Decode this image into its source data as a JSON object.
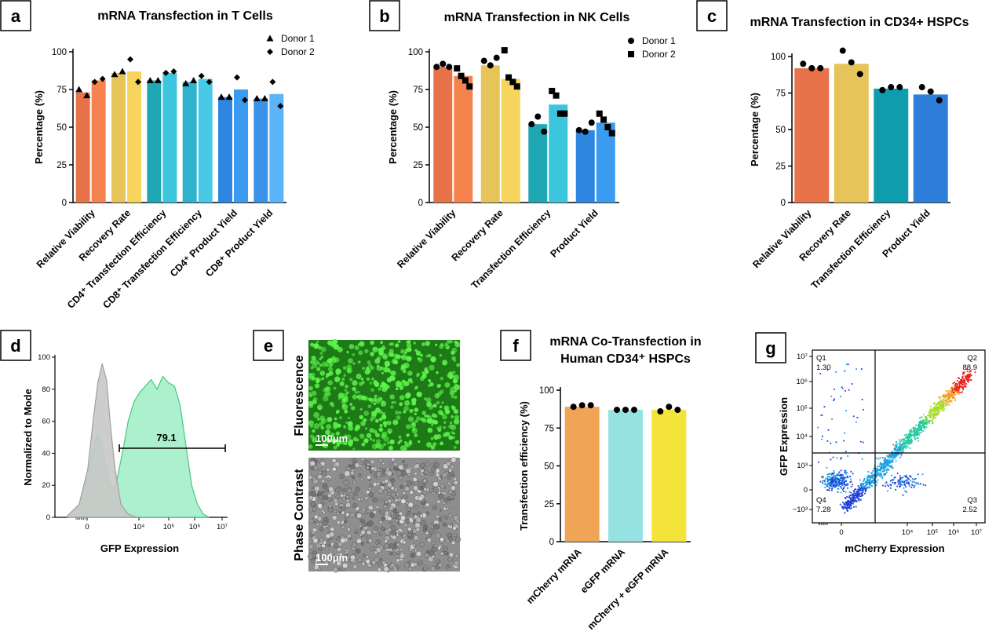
{
  "colors": {
    "orange": "#E8734A",
    "orange_light": "#F5834E",
    "gold": "#E6C45A",
    "gold_light": "#F7D45E",
    "teal": "#1FA8B4",
    "teal_light": "#3CC6DD",
    "teal_b": "#2FB3CC",
    "teal_b_light": "#48C9E6",
    "blue": "#2E86E0",
    "blue_light": "#3A9BF0",
    "blue_b": "#3A93E8",
    "blue_b_light": "#5BB4F8",
    "c_teal": "#0F9DAE",
    "c_blue": "#2D7ED8",
    "f_orange": "#F0A455",
    "f_cyan": "#96E2E2",
    "f_yellow": "#F4E43A",
    "hist_gray": "#C8C8C8",
    "hist_green": "#9EEDC6",
    "hist_green_line": "#49C87E",
    "fluor_bg": "#1E7A16",
    "fluor_cell": "#5DF24C",
    "phase_bg": "#8E8E8E"
  },
  "panels": {
    "a": {
      "letter": "a",
      "chart_data": {
        "type": "bar",
        "title": "mRNA Transfection in T Cells",
        "ylabel": "Percentage (%)",
        "ylim": [
          0,
          100
        ],
        "yticks": [
          "0",
          "25",
          "50",
          "75",
          "100"
        ],
        "categories": [
          "Relative Viability",
          "Recovery Rate",
          "CD4⁺ Transfection Efficiency",
          "CD8⁺ Transfection Efficiency",
          "CD4⁺ Product Yield",
          "CD8⁺ Product Yield"
        ],
        "series": [
          {
            "name": "Donor 1",
            "marker": "triangle",
            "values": [
              73,
              86,
              81,
              80,
              70,
              69
            ],
            "points": [
              [
                75,
                71
              ],
              [
                85,
                87
              ],
              [
                81,
                81
              ],
              [
                79,
                81
              ],
              [
                70,
                70
              ],
              [
                69,
                69
              ]
            ]
          },
          {
            "name": "Donor 2",
            "marker": "diamond",
            "values": [
              81,
              87,
              86,
              82,
              75,
              72
            ],
            "points": [
              [
                80,
                82
              ],
              [
                95,
                80
              ],
              [
                86,
                87
              ],
              [
                84,
                80
              ],
              [
                83,
                68
              ],
              [
                80,
                64
              ]
            ]
          }
        ],
        "legend": "top-right"
      }
    },
    "b": {
      "letter": "b",
      "chart_data": {
        "type": "bar",
        "title": "mRNA Transfection in NK Cells",
        "ylabel": "Percentage (%)",
        "ylim": [
          0,
          100
        ],
        "yticks": [
          "0",
          "25",
          "50",
          "75",
          "100"
        ],
        "categories": [
          "Relative Viability",
          "Recovery Rate",
          "Transfection Efficiency",
          "Product Yield"
        ],
        "series": [
          {
            "name": "Donor 1",
            "marker": "circle",
            "values": [
              90,
              91,
              52,
              48
            ],
            "points": [
              [
                90,
                92,
                90
              ],
              [
                94,
                91,
                96
              ],
              [
                52,
                57,
                47
              ],
              [
                48,
                47,
                53
              ]
            ]
          },
          {
            "name": "Donor 2",
            "marker": "square",
            "values": [
              84,
              82,
              65,
              53
            ],
            "points": [
              [
                89,
                84,
                81,
                77
              ],
              [
                101,
                83,
                80,
                77
              ],
              [
                74,
                71,
                59,
                59
              ],
              [
                59,
                55,
                50,
                46
              ]
            ]
          }
        ],
        "legend": "top-right"
      }
    },
    "c": {
      "letter": "c",
      "chart_data": {
        "type": "bar",
        "title": "mRNA Transfection in CD34+ HSPCs",
        "ylabel": "Percentage (%)",
        "ylim": [
          0,
          100
        ],
        "yticks": [
          "0",
          "25",
          "50",
          "75",
          "100"
        ],
        "categories": [
          "Relative Viability",
          "Recovery Rate",
          "Transfection Efficiency",
          "Product Yield"
        ],
        "values": [
          92,
          95,
          78,
          74
        ],
        "points": [
          [
            95,
            92,
            92
          ],
          [
            104,
            96,
            88
          ],
          [
            77,
            79,
            79
          ],
          [
            79,
            76,
            70
          ]
        ]
      }
    },
    "d": {
      "letter": "d",
      "chart_data": {
        "type": "area",
        "xlabel": "GFP Expression",
        "ylabel": "Normalized to Mode",
        "ylim": [
          0,
          100
        ],
        "yticks": [
          "0",
          "20",
          "40",
          "60",
          "80",
          "100"
        ],
        "xticks": [
          "0",
          "10⁴",
          "10⁵",
          "10⁶",
          "10⁷"
        ],
        "gate_label": "79.1",
        "series": [
          {
            "name": "",
            "color": "hist_gray",
            "x": [
              0.0,
              0.08,
              0.14,
              0.18,
              0.21,
              0.24,
              0.27,
              0.3,
              0.33,
              0.37,
              0.42,
              0.48
            ],
            "values": [
              1,
              8,
              30,
              62,
              84,
              96,
              86,
              55,
              30,
              8,
              2,
              0
            ]
          },
          {
            "name": "",
            "color": "hist_green",
            "x": [
              0.0,
              0.08,
              0.14,
              0.18,
              0.21,
              0.25,
              0.29,
              0.33,
              0.38,
              0.42,
              0.46,
              0.5,
              0.54,
              0.58,
              0.62,
              0.66,
              0.7,
              0.74,
              0.78,
              0.82,
              0.86,
              0.9,
              0.94,
              0.98
            ],
            "values": [
              1,
              8,
              25,
              44,
              52,
              40,
              20,
              18,
              40,
              60,
              72,
              78,
              82,
              86,
              80,
              88,
              84,
              82,
              70,
              45,
              20,
              8,
              2,
              0
            ]
          }
        ]
      }
    },
    "e": {
      "letter": "e",
      "top_label": "Fluorescence",
      "bottom_label": "Phase Contrast",
      "scale_top": "100μm",
      "scale_bottom": "100μm"
    },
    "f": {
      "letter": "f",
      "chart_data": {
        "type": "bar",
        "title": "mRNA Co-Transfection in",
        "subtitle": "Human CD34⁺ HSPCs",
        "ylabel": "Transfection efficiency (%)",
        "ylim": [
          0,
          100
        ],
        "yticks": [
          "0",
          "25",
          "50",
          "75",
          "100"
        ],
        "categories": [
          "mCherry mRNA",
          "eGFP mRNA",
          "mCherry + eGFP mRNA"
        ],
        "values": [
          89,
          87,
          87
        ],
        "points": [
          [
            89,
            90,
            90
          ],
          [
            87,
            87,
            87
          ],
          [
            86,
            89,
            87
          ]
        ]
      }
    },
    "g": {
      "letter": "g",
      "chart_data": {
        "type": "scatter",
        "xlabel": "mCherry Expression",
        "ylabel": "GFP Expression",
        "xticks": [
          "0",
          "10⁴",
          "10⁵",
          "10⁶",
          "10⁷"
        ],
        "yticks": [
          "10⁷",
          "10⁶",
          "10⁵",
          "10⁴",
          "10³",
          "0",
          "−10³"
        ],
        "quadrants": [
          {
            "name": "Q1",
            "value": "1.30"
          },
          {
            "name": "Q2",
            "value": "88.9"
          },
          {
            "name": "Q3",
            "value": "2.52"
          },
          {
            "name": "Q4",
            "value": "7.28"
          }
        ]
      }
    }
  }
}
